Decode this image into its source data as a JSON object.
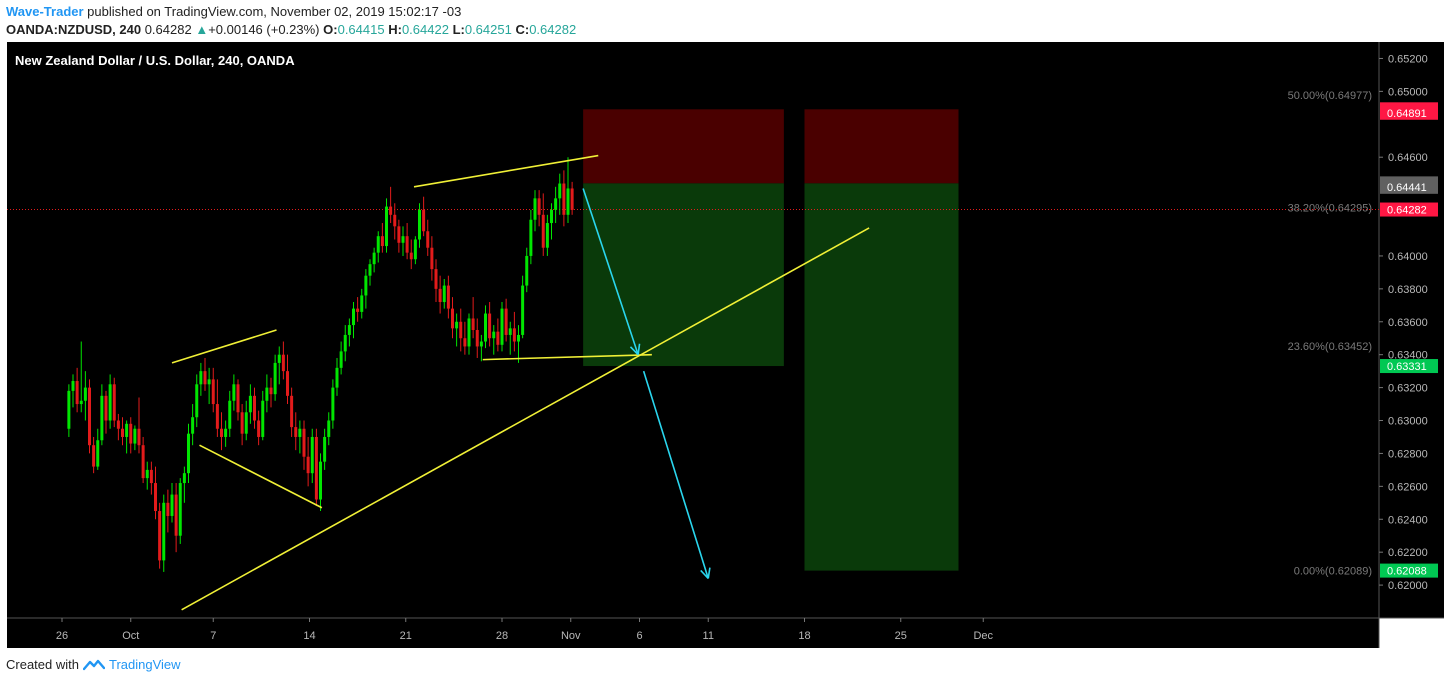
{
  "header": {
    "author": "Wave-Trader",
    "published_text": " published on TradingView.com, November 02, 2019 15:02:17 -03",
    "symbol": "OANDA:NZDUSD, 240",
    "last": "0.64282",
    "change_arrow": "▲",
    "change": "+0.00146 (+0.23%)",
    "o_label": "O:",
    "o": "0.64415",
    "h_label": "H:",
    "h": "0.64422",
    "l_label": "L:",
    "l": "0.64251",
    "c_label": "C:",
    "c": "0.64282"
  },
  "footer": {
    "created_with": "Created with",
    "brand": "TradingView",
    "logo_icon": "tradingview-logo-icon"
  },
  "chart_data": {
    "type": "candlestick",
    "title": "New Zealand Dollar / U.S. Dollar, 240, OANDA",
    "ylim": [
      0.618,
      0.653
    ],
    "y_ticks": [
      "0.65200",
      "0.65000",
      "0.64600",
      "0.64000",
      "0.63800",
      "0.63600",
      "0.63400",
      "0.63200",
      "0.63000",
      "0.62800",
      "0.62600",
      "0.62400",
      "0.62200",
      "0.62000"
    ],
    "x_ticks": [
      {
        "label": "26",
        "day": 0
      },
      {
        "label": "Oct",
        "day": 5
      },
      {
        "label": "7",
        "day": 11
      },
      {
        "label": "14",
        "day": 18
      },
      {
        "label": "21",
        "day": 25
      },
      {
        "label": "28",
        "day": 32
      },
      {
        "label": "Nov",
        "day": 37
      },
      {
        "label": "6",
        "day": 42
      },
      {
        "label": "11",
        "day": 47
      },
      {
        "label": "18",
        "day": 54
      },
      {
        "label": "25",
        "day": 61
      },
      {
        "label": "Dec",
        "day": 67
      }
    ],
    "price_tags": [
      {
        "label": "0.64891",
        "value": 0.64891,
        "color": "#ff1744"
      },
      {
        "label": "0.64891",
        "value": 0.6487,
        "color": "#ff1744"
      },
      {
        "label": "0.64441",
        "value": 0.64441,
        "color": "#606060"
      },
      {
        "label": "0.64441",
        "value": 0.6442,
        "color": "#606060"
      },
      {
        "label": "0.64282",
        "value": 0.64282,
        "color": "#ff1744"
      },
      {
        "label": "0.63331",
        "value": 0.63331,
        "color": "#00c853"
      },
      {
        "label": "0.62088",
        "value": 0.62088,
        "color": "#00c853"
      }
    ],
    "fib_levels": [
      {
        "label": "50.00%(0.64977)",
        "value": 0.64977
      },
      {
        "label": "38.20%(0.64295)",
        "value": 0.64295
      },
      {
        "label": "23.60%(0.63452)",
        "value": 0.63452
      },
      {
        "label": "0.00%(0.62089)",
        "value": 0.62089
      }
    ],
    "last_price": 0.64282,
    "colors": {
      "bull": "#00e600",
      "bear": "#e31b1b",
      "trend": "#f0f036",
      "arrow": "#2ad6ee",
      "stop": "#4a0000",
      "target": "#0a3a0a"
    },
    "positions": [
      {
        "start_day": 37.9,
        "end_day": 52.5,
        "stop": 0.64891,
        "entry": 0.64441,
        "target": 0.63331
      },
      {
        "start_day": 54.0,
        "end_day": 65.2,
        "stop": 0.64891,
        "entry": 0.64441,
        "target": 0.62088
      }
    ],
    "trendlines": [
      {
        "from": [
          8.0,
          0.6335
        ],
        "to": [
          15.6,
          0.6355
        ]
      },
      {
        "from": [
          10.0,
          0.6285
        ],
        "to": [
          18.9,
          0.6247
        ]
      },
      {
        "from": [
          25.6,
          0.6442
        ],
        "to": [
          39.0,
          0.6461
        ]
      },
      {
        "from": [
          30.6,
          0.6337
        ],
        "to": [
          42.9,
          0.634
        ]
      },
      {
        "from": [
          8.7,
          0.6185
        ],
        "to": [
          58.7,
          0.6417
        ]
      }
    ],
    "arrows": [
      {
        "from": [
          37.9,
          0.6441
        ],
        "to": [
          41.9,
          0.634
        ]
      },
      {
        "from": [
          42.3,
          0.633
        ],
        "to": [
          47.0,
          0.6204
        ]
      }
    ],
    "candles": [
      [
        0.5,
        0.6295,
        0.6322,
        0.629,
        0.6318
      ],
      [
        0.8,
        0.6318,
        0.6328,
        0.6308,
        0.6324
      ],
      [
        1.1,
        0.6324,
        0.6332,
        0.6305,
        0.631
      ],
      [
        1.4,
        0.631,
        0.6348,
        0.6305,
        0.6312
      ],
      [
        1.7,
        0.6312,
        0.633,
        0.63,
        0.632
      ],
      [
        2.0,
        0.632,
        0.6325,
        0.628,
        0.6285
      ],
      [
        2.3,
        0.6285,
        0.629,
        0.6268,
        0.6272
      ],
      [
        2.6,
        0.6272,
        0.6295,
        0.627,
        0.6288
      ],
      [
        2.9,
        0.6288,
        0.6322,
        0.6285,
        0.6315
      ],
      [
        3.2,
        0.6315,
        0.6318,
        0.6292,
        0.63
      ],
      [
        3.5,
        0.63,
        0.6328,
        0.6295,
        0.6322
      ],
      [
        3.8,
        0.6322,
        0.6326,
        0.6296,
        0.63
      ],
      [
        4.1,
        0.63,
        0.6304,
        0.6288,
        0.6295
      ],
      [
        4.4,
        0.6295,
        0.6302,
        0.6285,
        0.629
      ],
      [
        4.7,
        0.629,
        0.63,
        0.628,
        0.6298
      ],
      [
        5.0,
        0.6298,
        0.6302,
        0.628,
        0.6286
      ],
      [
        5.3,
        0.6286,
        0.6297,
        0.6282,
        0.6295
      ],
      [
        5.6,
        0.6295,
        0.6314,
        0.628,
        0.6285
      ],
      [
        5.9,
        0.6285,
        0.629,
        0.6262,
        0.6265
      ],
      [
        6.2,
        0.6265,
        0.6275,
        0.6258,
        0.627
      ],
      [
        6.5,
        0.627,
        0.6275,
        0.6255,
        0.6262
      ],
      [
        6.8,
        0.6262,
        0.6272,
        0.624,
        0.6245
      ],
      [
        7.1,
        0.6245,
        0.625,
        0.621,
        0.6215
      ],
      [
        7.4,
        0.6215,
        0.6255,
        0.6208,
        0.625
      ],
      [
        7.7,
        0.625,
        0.6258,
        0.6232,
        0.6242
      ],
      [
        8.0,
        0.6242,
        0.6262,
        0.6238,
        0.6255
      ],
      [
        8.3,
        0.6255,
        0.6262,
        0.622,
        0.623
      ],
      [
        8.6,
        0.623,
        0.6265,
        0.6225,
        0.6262
      ],
      [
        8.9,
        0.6262,
        0.6272,
        0.625,
        0.6268
      ],
      [
        9.2,
        0.6268,
        0.6298,
        0.6262,
        0.6292
      ],
      [
        9.5,
        0.6292,
        0.631,
        0.6285,
        0.6302
      ],
      [
        9.8,
        0.6302,
        0.6328,
        0.6296,
        0.6322
      ],
      [
        10.1,
        0.6322,
        0.6335,
        0.6315,
        0.633
      ],
      [
        10.4,
        0.633,
        0.6338,
        0.6318,
        0.6322
      ],
      [
        10.7,
        0.6322,
        0.6332,
        0.631,
        0.6325
      ],
      [
        11.0,
        0.6325,
        0.6332,
        0.6305,
        0.631
      ],
      [
        11.3,
        0.631,
        0.6325,
        0.629,
        0.6295
      ],
      [
        11.6,
        0.6295,
        0.6305,
        0.6282,
        0.629
      ],
      [
        11.9,
        0.629,
        0.63,
        0.6284,
        0.6295
      ],
      [
        12.2,
        0.6295,
        0.6318,
        0.629,
        0.6312
      ],
      [
        12.5,
        0.6312,
        0.6328,
        0.6306,
        0.6322
      ],
      [
        12.8,
        0.6322,
        0.6325,
        0.63,
        0.6305
      ],
      [
        13.1,
        0.6305,
        0.631,
        0.6285,
        0.6292
      ],
      [
        13.4,
        0.6292,
        0.6312,
        0.6288,
        0.6305
      ],
      [
        13.7,
        0.6305,
        0.6322,
        0.6298,
        0.6315
      ],
      [
        14.0,
        0.6315,
        0.632,
        0.6295,
        0.63
      ],
      [
        14.3,
        0.63,
        0.6306,
        0.6285,
        0.629
      ],
      [
        14.6,
        0.629,
        0.6318,
        0.6288,
        0.6312
      ],
      [
        14.9,
        0.6312,
        0.6328,
        0.6305,
        0.632
      ],
      [
        15.2,
        0.632,
        0.6326,
        0.6308,
        0.6316
      ],
      [
        15.5,
        0.6316,
        0.634,
        0.6312,
        0.6335
      ],
      [
        15.8,
        0.6335,
        0.6345,
        0.6322,
        0.634
      ],
      [
        16.1,
        0.634,
        0.6348,
        0.6325,
        0.633
      ],
      [
        16.4,
        0.633,
        0.634,
        0.631,
        0.6315
      ],
      [
        16.7,
        0.6315,
        0.632,
        0.629,
        0.6296
      ],
      [
        17.0,
        0.6296,
        0.6305,
        0.6282,
        0.629
      ],
      [
        17.3,
        0.629,
        0.63,
        0.628,
        0.6295
      ],
      [
        17.6,
        0.6295,
        0.63,
        0.627,
        0.6278
      ],
      [
        17.9,
        0.6278,
        0.629,
        0.626,
        0.6268
      ],
      [
        18.2,
        0.6268,
        0.6295,
        0.6262,
        0.629
      ],
      [
        18.5,
        0.629,
        0.6295,
        0.6248,
        0.6252
      ],
      [
        18.8,
        0.6252,
        0.628,
        0.6245,
        0.6275
      ],
      [
        19.1,
        0.6275,
        0.6295,
        0.627,
        0.629
      ],
      [
        19.4,
        0.629,
        0.6305,
        0.6285,
        0.63
      ],
      [
        19.7,
        0.63,
        0.6325,
        0.6295,
        0.632
      ],
      [
        20.0,
        0.632,
        0.6338,
        0.6315,
        0.6332
      ],
      [
        20.3,
        0.6332,
        0.6348,
        0.6328,
        0.6342
      ],
      [
        20.6,
        0.6342,
        0.6358,
        0.6336,
        0.6352
      ],
      [
        20.9,
        0.6352,
        0.6362,
        0.6345,
        0.6358
      ],
      [
        21.2,
        0.6358,
        0.6372,
        0.635,
        0.6368
      ],
      [
        21.5,
        0.6368,
        0.6375,
        0.636,
        0.6366
      ],
      [
        21.8,
        0.6366,
        0.638,
        0.6362,
        0.6376
      ],
      [
        22.1,
        0.6376,
        0.6392,
        0.6368,
        0.6388
      ],
      [
        22.4,
        0.6388,
        0.6398,
        0.6382,
        0.6395
      ],
      [
        22.7,
        0.6395,
        0.6405,
        0.639,
        0.6402
      ],
      [
        23.0,
        0.6402,
        0.6415,
        0.6396,
        0.6412
      ],
      [
        23.3,
        0.6412,
        0.642,
        0.6402,
        0.6406
      ],
      [
        23.6,
        0.6406,
        0.6435,
        0.6402,
        0.643
      ],
      [
        23.9,
        0.643,
        0.6442,
        0.642,
        0.6425
      ],
      [
        24.2,
        0.6425,
        0.6432,
        0.641,
        0.6418
      ],
      [
        24.5,
        0.6418,
        0.6422,
        0.6402,
        0.6408
      ],
      [
        24.8,
        0.6408,
        0.6418,
        0.64,
        0.6412
      ],
      [
        25.1,
        0.6412,
        0.642,
        0.6398,
        0.6402
      ],
      [
        25.4,
        0.6402,
        0.641,
        0.6392,
        0.6398
      ],
      [
        25.7,
        0.6398,
        0.6412,
        0.6395,
        0.641
      ],
      [
        26.0,
        0.641,
        0.6432,
        0.6405,
        0.6428
      ],
      [
        26.3,
        0.6428,
        0.6436,
        0.6412,
        0.6415
      ],
      [
        26.6,
        0.6415,
        0.6422,
        0.64,
        0.6405
      ],
      [
        26.9,
        0.6405,
        0.6412,
        0.6385,
        0.6392
      ],
      [
        27.2,
        0.6392,
        0.6398,
        0.6372,
        0.638
      ],
      [
        27.5,
        0.638,
        0.6388,
        0.6365,
        0.6372
      ],
      [
        27.8,
        0.6372,
        0.6386,
        0.6368,
        0.6382
      ],
      [
        28.1,
        0.6382,
        0.6388,
        0.6362,
        0.6368
      ],
      [
        28.4,
        0.6368,
        0.6375,
        0.635,
        0.6356
      ],
      [
        28.7,
        0.6356,
        0.6365,
        0.6345,
        0.636
      ],
      [
        29.0,
        0.636,
        0.6368,
        0.6342,
        0.635
      ],
      [
        29.3,
        0.635,
        0.636,
        0.634,
        0.6345
      ],
      [
        29.6,
        0.6345,
        0.6365,
        0.634,
        0.6362
      ],
      [
        29.9,
        0.6362,
        0.6375,
        0.635,
        0.6355
      ],
      [
        30.2,
        0.6355,
        0.6362,
        0.6338,
        0.6345
      ],
      [
        30.5,
        0.6345,
        0.6352,
        0.6336,
        0.6348
      ],
      [
        30.8,
        0.6348,
        0.637,
        0.6344,
        0.6365
      ],
      [
        31.1,
        0.6365,
        0.6372,
        0.6345,
        0.635
      ],
      [
        31.4,
        0.635,
        0.6358,
        0.634,
        0.6354
      ],
      [
        31.7,
        0.6354,
        0.6362,
        0.6342,
        0.6346
      ],
      [
        32.0,
        0.6346,
        0.6372,
        0.6342,
        0.6368
      ],
      [
        32.3,
        0.6368,
        0.6374,
        0.6348,
        0.6352
      ],
      [
        32.6,
        0.6352,
        0.636,
        0.634,
        0.6356
      ],
      [
        32.9,
        0.6356,
        0.6366,
        0.6342,
        0.6348
      ],
      [
        33.2,
        0.6348,
        0.6358,
        0.6335,
        0.6352
      ],
      [
        33.5,
        0.6352,
        0.6388,
        0.635,
        0.6382
      ],
      [
        33.8,
        0.6382,
        0.6405,
        0.6378,
        0.64
      ],
      [
        34.1,
        0.64,
        0.6428,
        0.6395,
        0.6422
      ],
      [
        34.4,
        0.6422,
        0.644,
        0.6415,
        0.6435
      ],
      [
        34.7,
        0.6435,
        0.644,
        0.6418,
        0.6425
      ],
      [
        35.0,
        0.6425,
        0.6438,
        0.64,
        0.6405
      ],
      [
        35.3,
        0.6405,
        0.6425,
        0.64,
        0.642
      ],
      [
        35.6,
        0.642,
        0.6432,
        0.641,
        0.6428
      ],
      [
        35.9,
        0.6428,
        0.6442,
        0.642,
        0.6435
      ],
      [
        36.2,
        0.6435,
        0.645,
        0.6425,
        0.6444
      ],
      [
        36.5,
        0.6444,
        0.6452,
        0.6418,
        0.6425
      ],
      [
        36.8,
        0.6425,
        0.646,
        0.642,
        0.6441
      ],
      [
        37.1,
        0.6441,
        0.6445,
        0.6425,
        0.6428
      ]
    ]
  }
}
